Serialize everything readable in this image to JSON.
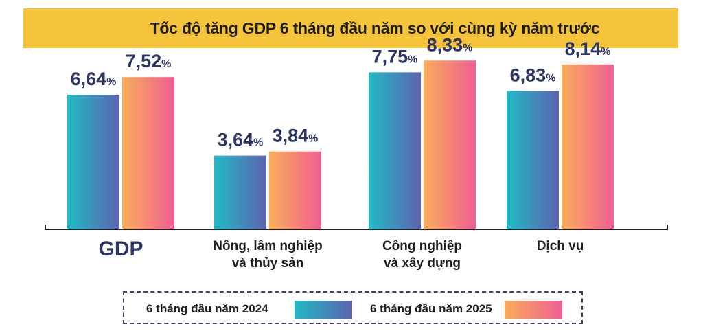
{
  "title": "Tốc độ tăng GDP 6 tháng đầu năm so với cùng kỳ năm trước",
  "legend": {
    "series_2024": "6 tháng đầu năm 2024",
    "series_2025": "6 tháng đầu năm 2025"
  },
  "colors": {
    "title_background": "#f5c43a",
    "series_2024_gradient": [
      "#22b9c4",
      "#5c63b0"
    ],
    "series_2025_gradient": [
      "#f9ad59",
      "#ef5f93"
    ],
    "value_label": "#2c3566"
  },
  "chart_data": {
    "type": "bar",
    "title": "Tốc độ tăng GDP 6 tháng đầu năm so với cùng kỳ năm trước",
    "categories": [
      [
        "GDP"
      ],
      [
        "Nông, lâm nghiệp",
        "và thủy sản"
      ],
      [
        "Công nghiệp",
        "và xây dựng"
      ],
      [
        "Dịch vụ"
      ]
    ],
    "series": [
      {
        "name": "6 tháng đầu năm 2024",
        "values": [
          6.64,
          3.64,
          7.75,
          6.83
        ],
        "labels": [
          "6,64",
          "3,64",
          "7,75",
          "6,83"
        ]
      },
      {
        "name": "6 tháng đầu năm 2025",
        "values": [
          7.52,
          3.84,
          8.33,
          8.14
        ],
        "labels": [
          "7,52",
          "3,84",
          "8,33",
          "8,14"
        ]
      }
    ],
    "unit": "%",
    "ylim": [
      0,
      10
    ],
    "grid": false,
    "legend_position": "bottom"
  }
}
